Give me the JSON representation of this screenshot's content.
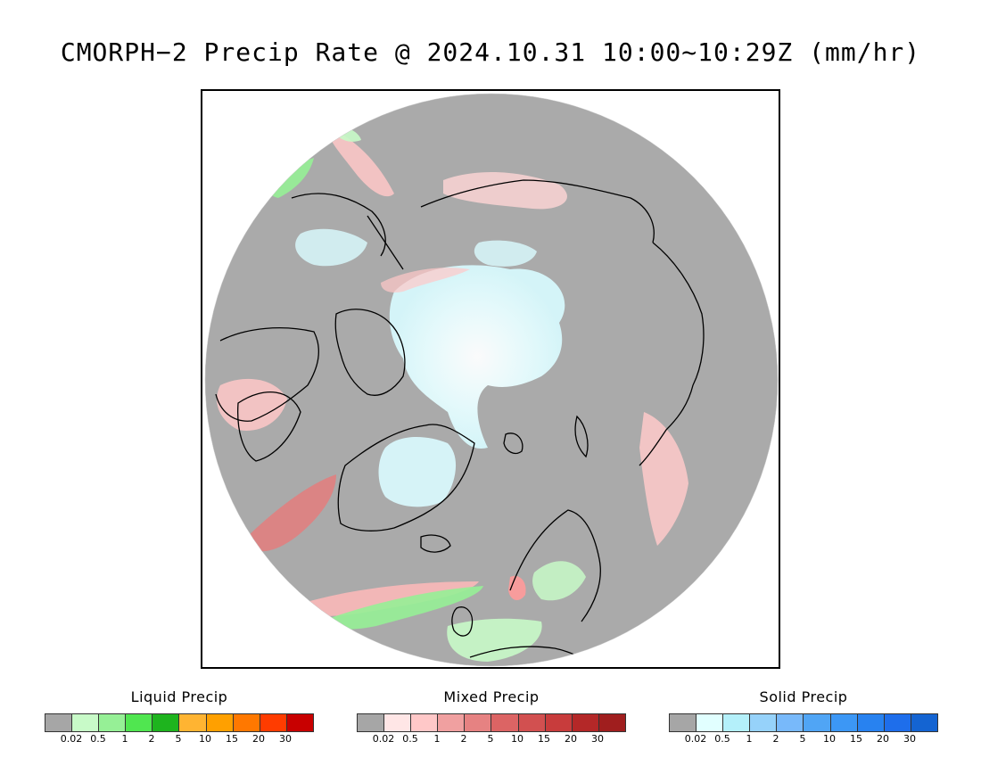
{
  "title": "CMORPH−2 Precip Rate @ 2024.10.31 10:00~10:29Z (mm/hr)",
  "map": {
    "background": "#aaaaaa",
    "coastline": "#000000"
  },
  "legends": [
    {
      "title": "Liquid Precip",
      "colors": [
        "#a6a6a6",
        "#c8fac8",
        "#96f096",
        "#50e650",
        "#1eb41e",
        "#ffb432",
        "#ffa000",
        "#ff7800",
        "#ff3c00",
        "#c80000"
      ],
      "ticks": [
        "0.02",
        "0.5",
        "1",
        "2",
        "5",
        "10",
        "15",
        "20",
        "30"
      ]
    },
    {
      "title": "Mixed Precip",
      "colors": [
        "#a6a6a6",
        "#ffe6e6",
        "#ffc8c8",
        "#f0a0a0",
        "#e68282",
        "#dc6464",
        "#d25050",
        "#c83c3c",
        "#b42828",
        "#a01e1e"
      ],
      "ticks": [
        "0.02",
        "0.5",
        "1",
        "2",
        "5",
        "10",
        "15",
        "20",
        "30"
      ]
    },
    {
      "title": "Solid Precip",
      "colors": [
        "#a6a6a6",
        "#e1ffff",
        "#b4f0fa",
        "#96d2fa",
        "#78b9fa",
        "#50a5f5",
        "#3c97f5",
        "#2882f0",
        "#1e6eeb",
        "#1464d2"
      ],
      "ticks": [
        "0.02",
        "0.5",
        "1",
        "2",
        "5",
        "10",
        "15",
        "20",
        "30"
      ]
    }
  ]
}
